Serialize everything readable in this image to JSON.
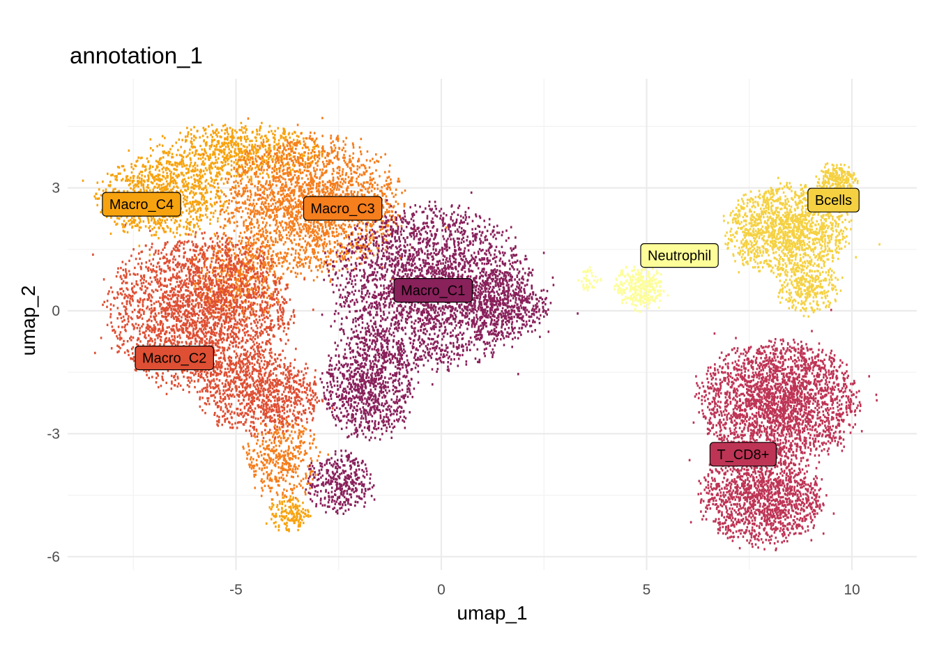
{
  "chart_data": {
    "type": "scatter",
    "title": "annotation_1",
    "xlabel": "umap_1",
    "ylabel": "umap_2",
    "xlim": [
      -9,
      11.5
    ],
    "ylim": [
      -6.3,
      5.6
    ],
    "x_ticks": [
      -5,
      0,
      5,
      10
    ],
    "x_tick_labels": [
      "-5",
      "0",
      "5",
      "10"
    ],
    "y_ticks": [
      -6,
      -3,
      0,
      3
    ],
    "y_tick_labels": [
      "-6",
      "-3",
      "0",
      "3"
    ],
    "grid": true,
    "legend": "none",
    "clusters": [
      {
        "name": "Macro_C4",
        "color": "#F7A30F",
        "label_pos": [
          -7.3,
          2.6
        ],
        "regions": [
          {
            "cx": -6.8,
            "cy": 2.8,
            "rx": 1.6,
            "ry": 1.0,
            "n": 900
          },
          {
            "cx": -5.0,
            "cy": 3.9,
            "rx": 2.0,
            "ry": 0.7,
            "n": 700
          },
          {
            "cx": -3.7,
            "cy": -4.9,
            "rx": 0.5,
            "ry": 0.5,
            "n": 150
          }
        ]
      },
      {
        "name": "Macro_C3",
        "color": "#F57E1D",
        "label_pos": [
          -2.4,
          2.5
        ],
        "regions": [
          {
            "cx": -3.2,
            "cy": 2.6,
            "rx": 2.2,
            "ry": 1.7,
            "n": 2200
          },
          {
            "cx": -5.0,
            "cy": 0.8,
            "rx": 1.2,
            "ry": 1.0,
            "n": 500
          },
          {
            "cx": -3.9,
            "cy": -3.6,
            "rx": 0.9,
            "ry": 1.0,
            "n": 400
          }
        ]
      },
      {
        "name": "Macro_C2",
        "color": "#DE4F33",
        "label_pos": [
          -6.5,
          -1.15
        ],
        "regions": [
          {
            "cx": -5.9,
            "cy": 0.0,
            "rx": 2.2,
            "ry": 1.9,
            "n": 2500
          },
          {
            "cx": -4.4,
            "cy": -2.0,
            "rx": 1.5,
            "ry": 1.0,
            "n": 900
          }
        ]
      },
      {
        "name": "Macro_C1",
        "color": "#89215B",
        "label_pos": [
          -0.2,
          0.5
        ],
        "regions": [
          {
            "cx": -0.3,
            "cy": 0.6,
            "rx": 2.4,
            "ry": 2.0,
            "n": 2600
          },
          {
            "cx": -1.8,
            "cy": -1.8,
            "rx": 1.1,
            "ry": 1.3,
            "n": 900
          },
          {
            "cx": -2.5,
            "cy": -4.2,
            "rx": 0.8,
            "ry": 0.8,
            "n": 350
          },
          {
            "cx": 1.5,
            "cy": 0.2,
            "rx": 1.1,
            "ry": 0.9,
            "n": 500
          }
        ]
      },
      {
        "name": "Neutrophil",
        "color": "#FDFE99",
        "label_pos": [
          5.8,
          1.35
        ],
        "regions": [
          {
            "cx": 4.8,
            "cy": 0.6,
            "rx": 0.6,
            "ry": 0.55,
            "n": 320
          },
          {
            "cx": 3.6,
            "cy": 0.8,
            "rx": 0.3,
            "ry": 0.3,
            "n": 40
          }
        ]
      },
      {
        "name": "Bcells",
        "color": "#F5D142",
        "label_pos": [
          9.55,
          2.7
        ],
        "regions": [
          {
            "cx": 8.4,
            "cy": 2.0,
            "rx": 1.5,
            "ry": 1.1,
            "n": 1400
          },
          {
            "cx": 9.6,
            "cy": 3.2,
            "rx": 0.5,
            "ry": 0.4,
            "n": 250
          },
          {
            "cx": 8.9,
            "cy": 0.6,
            "rx": 0.8,
            "ry": 0.6,
            "n": 300
          }
        ]
      },
      {
        "name": "T_CD8+",
        "color": "#BE3455",
        "label_pos": [
          7.35,
          -3.5
        ],
        "regions": [
          {
            "cx": 8.2,
            "cy": -2.2,
            "rx": 1.9,
            "ry": 1.5,
            "n": 2400
          },
          {
            "cx": 7.8,
            "cy": -4.5,
            "rx": 1.5,
            "ry": 1.2,
            "n": 1400
          }
        ]
      }
    ]
  }
}
